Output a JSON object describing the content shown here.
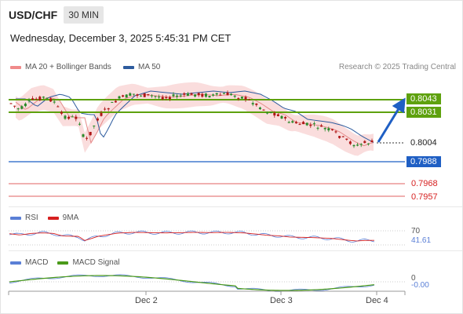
{
  "header": {
    "pair": "USD/CHF",
    "timeframe": "30 MIN"
  },
  "timestamp": "Wednesday, December 3, 2025 5:45:31 PM CET",
  "legend": [
    {
      "label": "MA 20 + Bollinger Bands",
      "color": "#f08a8a"
    },
    {
      "label": "MA 50",
      "color": "#2e5c9e"
    }
  ],
  "credit": "Research © 2025 Trading Central",
  "levels": {
    "target1": "0.8043",
    "target2": "0.8031",
    "current": "0.8004",
    "pivot": "0.7988",
    "support1": "0.7968",
    "support2": "0.7957"
  },
  "rsi": {
    "legend": [
      "RSI",
      "9MA"
    ],
    "level_label": "70",
    "value": "41.61",
    "colors": [
      "#5a7fd6",
      "#d62020"
    ]
  },
  "macd": {
    "legend": [
      "MACD",
      "MACD Signal"
    ],
    "level_label": "0",
    "value": "-0.00",
    "colors": [
      "#5a7fd6",
      "#4a9a1a"
    ]
  },
  "x_axis": [
    "Dec 2",
    "Dec 3",
    "Dec 4"
  ],
  "colors": {
    "green": "#5ea10e",
    "blue": "#1f5fc4",
    "red": "#d62020",
    "candle_up": "#2a8a2a",
    "candle_down": "#b01818"
  }
}
